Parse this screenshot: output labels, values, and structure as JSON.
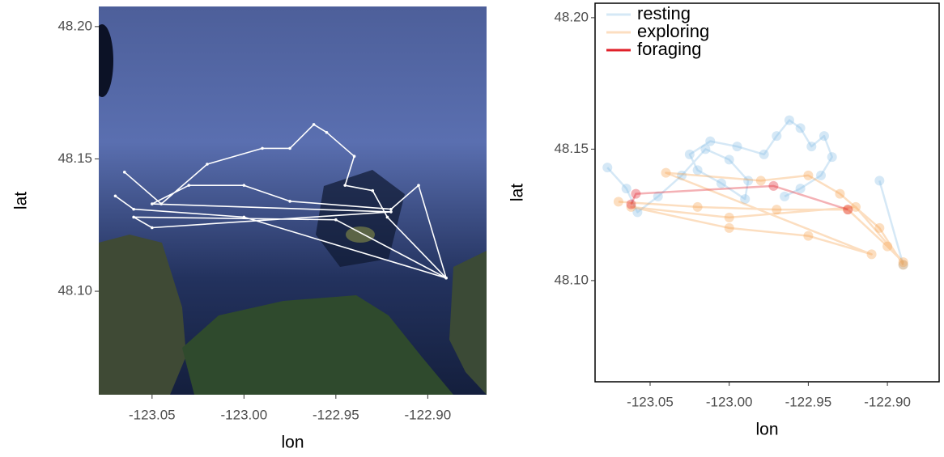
{
  "chart_data": [
    {
      "type": "line",
      "x_label": "lon",
      "y_label": "lat",
      "color": "#ffffff",
      "xlim": [
        -123.079,
        -122.868
      ],
      "ylim": [
        48.0609,
        48.2076
      ],
      "xticks": [
        -123.05,
        {
          "value": -123.0,
          "label": "-123.00"
        },
        -122.95,
        {
          "value": -122.9,
          "label": "-122.90"
        }
      ],
      "yticks": [
        {
          "value": 48.2,
          "label": "48.20"
        },
        48.15,
        {
          "value": 48.1,
          "label": "48.10"
        }
      ],
      "x": [
        -123.065,
        -123.045,
        -123.02,
        -122.99,
        -122.975,
        -122.962,
        -122.955,
        -122.94,
        -122.945,
        -122.93,
        -122.922,
        -122.89,
        -122.95,
        -123.06,
        -123.05,
        -122.92,
        -123.05,
        -123.03,
        -123.0,
        -122.975,
        -122.92,
        -122.905,
        -122.89,
        -123.0,
        -123.06,
        -123.07
      ],
      "values": [
        48.145,
        48.133,
        48.148,
        48.154,
        48.154,
        48.163,
        48.16,
        48.151,
        48.14,
        48.138,
        48.128,
        48.105,
        48.127,
        48.128,
        48.124,
        48.13,
        48.133,
        48.14,
        48.14,
        48.134,
        48.131,
        48.14,
        48.105,
        48.128,
        48.131,
        48.136
      ]
    },
    {
      "type": "line",
      "x_label": "lon",
      "y_label": "lat",
      "legend": "top-left",
      "xlim": [
        -123.0848,
        -122.8673
      ],
      "ylim": [
        48.0615,
        48.2055
      ],
      "xticks": [
        -123.05,
        {
          "value": -123.0,
          "label": "-123.00"
        },
        -122.95,
        {
          "value": -122.9,
          "label": "-122.90"
        }
      ],
      "yticks": [
        {
          "value": 48.2,
          "label": "48.20"
        },
        48.15,
        {
          "value": 48.1,
          "label": "48.10"
        }
      ],
      "series": [
        {
          "name": "resting",
          "color": "#88bde6",
          "x": [
            -123.077,
            -123.065,
            -123.058,
            -123.045,
            -123.03,
            -123.015,
            -123.0,
            -122.988,
            -122.99,
            -123.005,
            -123.02,
            -123.025,
            -123.012,
            -122.995,
            -122.978,
            -122.97,
            -122.962,
            -122.955,
            -122.948,
            -122.94,
            -122.935,
            -122.942,
            -122.955,
            -122.965,
            null,
            -122.905,
            -122.89
          ],
          "values": [
            48.143,
            48.135,
            48.126,
            48.132,
            48.14,
            48.15,
            48.146,
            48.138,
            48.131,
            48.137,
            48.142,
            48.148,
            48.153,
            48.151,
            48.148,
            48.155,
            48.161,
            48.158,
            48.151,
            48.155,
            48.147,
            48.14,
            48.135,
            48.132,
            null,
            48.138,
            48.106
          ]
        },
        {
          "name": "exploring",
          "color": "#f5a04a",
          "x": [
            -123.07,
            -123.02,
            -122.97,
            -122.925,
            -122.9,
            -122.89,
            -122.92,
            -123.0,
            -123.062,
            -123.0,
            -122.95,
            -122.91,
            -123.04,
            -122.98,
            -122.95,
            -122.93,
            -122.905,
            -122.89
          ],
          "values": [
            48.13,
            48.128,
            48.127,
            48.127,
            48.113,
            48.107,
            48.128,
            48.124,
            48.128,
            48.12,
            48.117,
            48.11,
            48.141,
            48.138,
            48.14,
            48.133,
            48.12,
            48.106
          ]
        },
        {
          "name": "foraging",
          "color": "#e0202a",
          "x": [
            -123.062,
            -123.059,
            -122.972,
            -122.925
          ],
          "values": [
            48.129,
            48.133,
            48.136,
            48.127
          ]
        }
      ]
    }
  ]
}
